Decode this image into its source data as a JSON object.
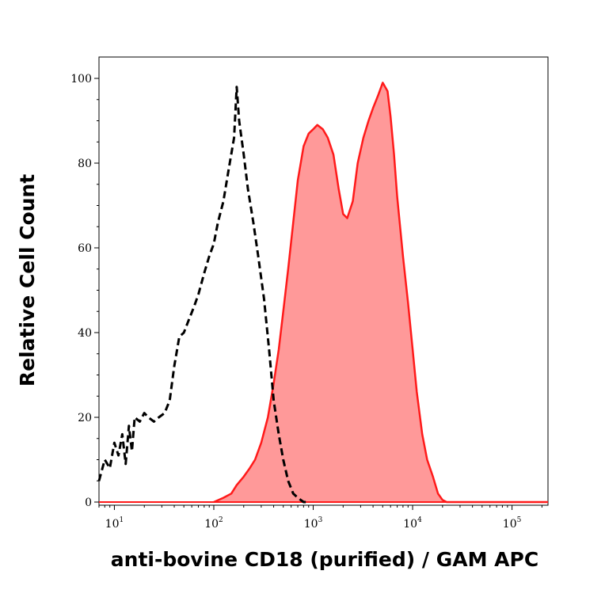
{
  "chart_data": {
    "type": "area",
    "xlabel": "anti-bovine CD18 (purified) / GAM APC",
    "ylabel": "Relative Cell Count",
    "xscale": "log",
    "xlim": [
      7,
      230000
    ],
    "ylim": [
      0,
      105
    ],
    "y_ticks": [
      0,
      20,
      40,
      60,
      80,
      100
    ],
    "x_ticks": [
      {
        "base": "10",
        "exp": "1",
        "value": 10
      },
      {
        "base": "10",
        "exp": "2",
        "value": 100
      },
      {
        "base": "10",
        "exp": "3",
        "value": 1000
      },
      {
        "base": "10",
        "exp": "4",
        "value": 10000
      },
      {
        "base": "10",
        "exp": "5",
        "value": 100000
      }
    ],
    "grid": false,
    "legend": "none",
    "series": [
      {
        "style": "dashed-line",
        "color": "#000000",
        "x": [
          7,
          8,
          9,
          10,
          11,
          12,
          13,
          14,
          15,
          16,
          18,
          20,
          22,
          25,
          28,
          32,
          36,
          40,
          45,
          50,
          56,
          63,
          70,
          80,
          90,
          100,
          110,
          125,
          140,
          160,
          170,
          180,
          200,
          220,
          250,
          280,
          320,
          360,
          400,
          450,
          500,
          560,
          630,
          700,
          800,
          900
        ],
        "y": [
          5,
          10,
          8,
          14,
          11,
          16,
          9,
          18,
          12,
          20,
          19,
          21,
          20,
          19,
          20,
          21,
          24,
          32,
          39,
          40,
          43,
          46,
          49,
          54,
          58,
          61,
          66,
          71,
          78,
          86,
          98,
          90,
          82,
          74,
          66,
          58,
          48,
          36,
          24,
          16,
          10,
          5,
          2,
          1,
          0,
          0
        ]
      },
      {
        "style": "filled-area",
        "color": "#ff1a1a",
        "fill": "#ff9999",
        "x": [
          100,
          125,
          150,
          170,
          200,
          230,
          260,
          300,
          350,
          400,
          450,
          500,
          560,
          630,
          700,
          800,
          900,
          1000,
          1100,
          1250,
          1400,
          1600,
          1800,
          2000,
          2200,
          2500,
          2800,
          3200,
          3600,
          4000,
          4500,
          5000,
          5600,
          6000,
          6500,
          7000,
          8000,
          9000,
          10000,
          11000,
          12500,
          14000,
          16000,
          18000,
          20000,
          22000,
          25000,
          230000
        ],
        "y": [
          0,
          1,
          2,
          4,
          6,
          8,
          10,
          14,
          20,
          28,
          36,
          45,
          55,
          66,
          76,
          84,
          87,
          88,
          89,
          88,
          86,
          82,
          74,
          68,
          67,
          71,
          80,
          86,
          90,
          93,
          96,
          99,
          97,
          91,
          82,
          72,
          58,
          47,
          36,
          26,
          16,
          10,
          6,
          2,
          0.5,
          0,
          0,
          0
        ]
      }
    ]
  }
}
